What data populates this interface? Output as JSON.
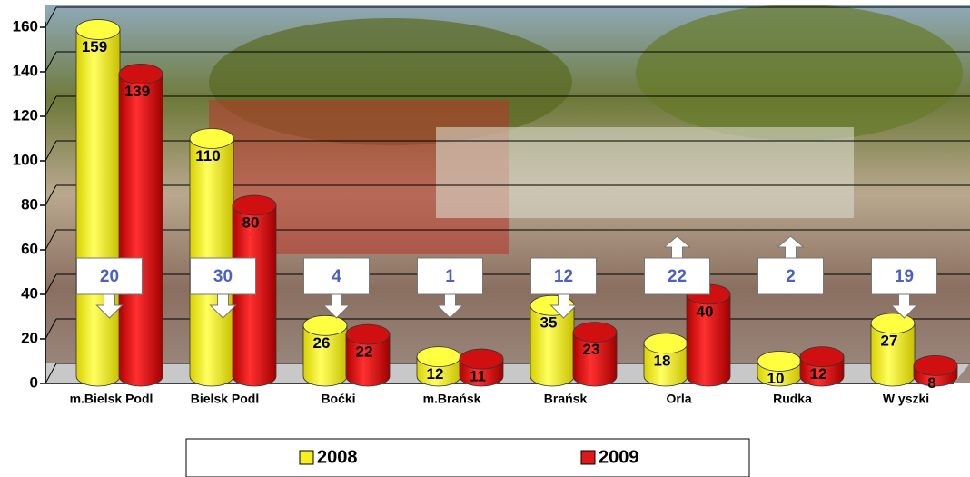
{
  "chart_data": {
    "type": "bar",
    "categories": [
      "m.Bielsk Podl",
      "Bielsk Podl",
      "Boćki",
      "m.Brańsk",
      "Brańsk",
      "Orla",
      "Rudka",
      "W yszki"
    ],
    "series": [
      {
        "name": "2008",
        "color": "#f5f01e",
        "values": [
          159,
          110,
          26,
          12,
          35,
          18,
          10,
          27
        ]
      },
      {
        "name": "2009",
        "color": "#e01818",
        "values": [
          139,
          80,
          22,
          11,
          23,
          40,
          12,
          8
        ]
      }
    ],
    "annotations": [
      {
        "label": "20",
        "direction": "down"
      },
      {
        "label": "30",
        "direction": "down"
      },
      {
        "label": "4",
        "direction": "down"
      },
      {
        "label": "1",
        "direction": "down"
      },
      {
        "label": "12",
        "direction": "down"
      },
      {
        "label": "22",
        "direction": "up"
      },
      {
        "label": "2",
        "direction": "up"
      },
      {
        "label": "19",
        "direction": "down"
      }
    ],
    "ylim": [
      0,
      160
    ],
    "yticks": [
      0,
      20,
      40,
      60,
      80,
      100,
      120,
      140,
      160
    ],
    "grid": true,
    "legend": "bottom"
  }
}
